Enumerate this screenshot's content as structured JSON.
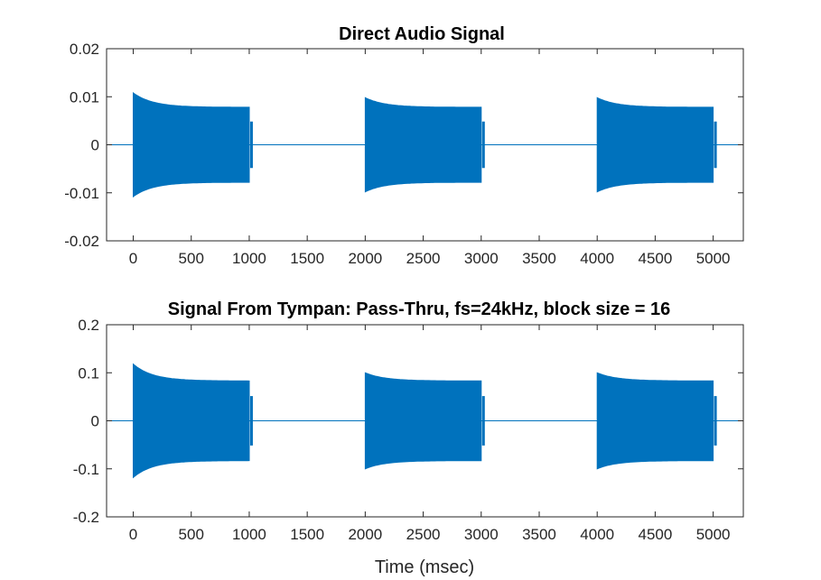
{
  "chart_data": [
    {
      "type": "line",
      "title": "Direct Audio Signal",
      "xlabel": "",
      "ylabel": "",
      "xlim": [
        -230,
        5260
      ],
      "ylim": [
        -0.02,
        0.02
      ],
      "x_ticks": [
        0,
        500,
        1000,
        1500,
        2000,
        2500,
        3000,
        3500,
        4000,
        4500,
        5000
      ],
      "x_tick_labels": [
        "0",
        "500",
        "1000",
        "1500",
        "2000",
        "2500",
        "3000",
        "3500",
        "4000",
        "4500",
        "5000"
      ],
      "y_ticks": [
        -0.02,
        -0.01,
        0,
        0.01,
        0.02
      ],
      "y_tick_labels": [
        "-0.02",
        "-0.01",
        "0",
        "0.01",
        "0.02"
      ],
      "grid": false,
      "line_color": "#0072BD",
      "series": [
        {
          "bursts": [
            {
              "start": 0,
              "end": 1000,
              "peak_amplitude": 0.0108,
              "steady_amplitude": 0.0078
            },
            {
              "start": 2000,
              "end": 3000,
              "peak_amplitude": 0.0098,
              "steady_amplitude": 0.0078
            },
            {
              "start": 4000,
              "end": 5000,
              "peak_amplitude": 0.0098,
              "steady_amplitude": 0.0078
            }
          ]
        }
      ]
    },
    {
      "type": "line",
      "title": "Signal From Tympan: Pass-Thru, fs=24kHz, block size = 16",
      "xlabel": "Time (msec)",
      "ylabel": "",
      "xlim": [
        -230,
        5260
      ],
      "ylim": [
        -0.2,
        0.2
      ],
      "x_ticks": [
        0,
        500,
        1000,
        1500,
        2000,
        2500,
        3000,
        3500,
        4000,
        4500,
        5000
      ],
      "x_tick_labels": [
        "0",
        "500",
        "1000",
        "1500",
        "2000",
        "2500",
        "3000",
        "3500",
        "4000",
        "4500",
        "5000"
      ],
      "y_ticks": [
        -0.2,
        -0.1,
        0,
        0.1,
        0.2
      ],
      "y_tick_labels": [
        "-0.2",
        "-0.1",
        "0",
        "0.1",
        "0.2"
      ],
      "grid": false,
      "line_color": "#0072BD",
      "series": [
        {
          "bursts": [
            {
              "start": 0,
              "end": 1000,
              "peak_amplitude": 0.118,
              "steady_amplitude": 0.083
            },
            {
              "start": 2000,
              "end": 3000,
              "peak_amplitude": 0.1,
              "steady_amplitude": 0.083
            },
            {
              "start": 4000,
              "end": 5000,
              "peak_amplitude": 0.1,
              "steady_amplitude": 0.083
            }
          ]
        }
      ]
    }
  ]
}
